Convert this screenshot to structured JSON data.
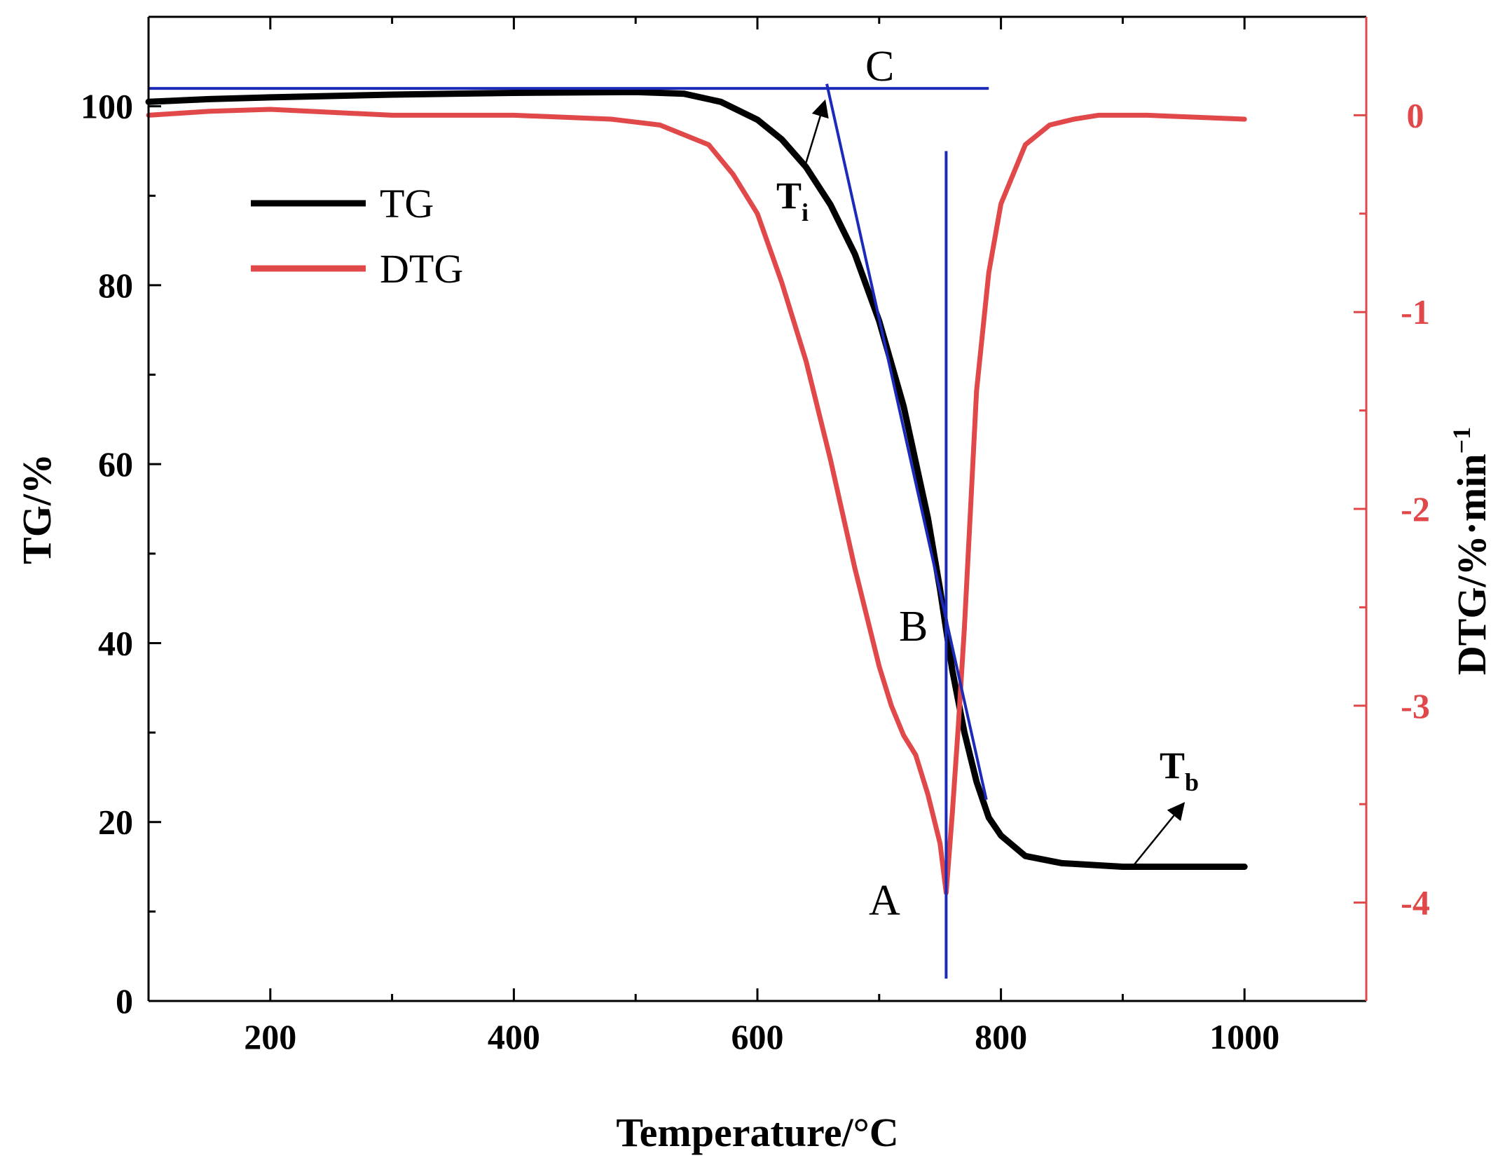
{
  "chart_data": {
    "type": "line",
    "x_axis": {
      "label": "Temperature/°C",
      "range": [
        100,
        1100
      ],
      "ticks": [
        200,
        400,
        600,
        800,
        1000
      ],
      "tick_labels": [
        "200",
        "400",
        "600",
        "800",
        "1000"
      ],
      "minor_ticks": [
        300,
        500,
        700,
        900
      ]
    },
    "y_left": {
      "label": "TG/%",
      "range": [
        0,
        110
      ],
      "ticks": [
        0,
        20,
        40,
        60,
        80,
        100
      ],
      "tick_labels": [
        "0",
        "20",
        "40",
        "60",
        "80",
        "100"
      ],
      "minor_ticks": [
        10,
        30,
        50,
        70,
        90
      ]
    },
    "y_right": {
      "label": "DTG/%·min",
      "label_superscript": "−1",
      "range": [
        -4.5,
        0.5
      ],
      "ticks": [
        0,
        -1,
        -2,
        -3,
        -4
      ],
      "tick_labels": [
        "0",
        "-1",
        "-2",
        "-3",
        "-4"
      ],
      "minor_ticks": [
        -0.5,
        -1.5,
        -2.5,
        -3.5
      ],
      "color": "#e0484a"
    },
    "series": [
      {
        "name": "TG",
        "axis": "left",
        "color": "#000000",
        "x": [
          100,
          150,
          200,
          300,
          400,
          500,
          540,
          570,
          600,
          620,
          640,
          660,
          680,
          700,
          720,
          740,
          750,
          760,
          770,
          780,
          790,
          800,
          820,
          850,
          900,
          950,
          1000
        ],
        "y": [
          100.5,
          100.8,
          101.0,
          101.3,
          101.5,
          101.6,
          101.4,
          100.5,
          98.5,
          96.3,
          93.2,
          89.0,
          83.5,
          76.0,
          66.5,
          54.0,
          46.0,
          37.0,
          30.0,
          24.5,
          20.5,
          18.5,
          16.2,
          15.4,
          15.0,
          15.0,
          15.0
        ]
      },
      {
        "name": "DTG",
        "axis": "right",
        "color": "#e0484a",
        "x": [
          100,
          150,
          200,
          300,
          400,
          480,
          520,
          560,
          580,
          600,
          620,
          640,
          660,
          680,
          700,
          710,
          720,
          730,
          740,
          750,
          755,
          760,
          765,
          770,
          775,
          780,
          790,
          800,
          820,
          840,
          860,
          880,
          900,
          920,
          1000
        ],
        "y": [
          0.0,
          0.02,
          0.03,
          0.0,
          0.0,
          -0.02,
          -0.05,
          -0.15,
          -0.3,
          -0.5,
          -0.85,
          -1.25,
          -1.75,
          -2.3,
          -2.8,
          -3.0,
          -3.15,
          -3.25,
          -3.45,
          -3.7,
          -3.95,
          -3.55,
          -3.1,
          -2.6,
          -2.0,
          -1.4,
          -0.8,
          -0.45,
          -0.15,
          -0.05,
          -0.02,
          0.0,
          0.0,
          0.0,
          -0.02
        ]
      }
    ],
    "annotations": {
      "point_A": "A",
      "point_B": "B",
      "point_C": "C",
      "T_i": {
        "main": "T",
        "sub": "i"
      },
      "T_b": {
        "main": "T",
        "sub": "b"
      },
      "tangent_color": "#1c2ab8",
      "horizontal_baseline_tg": 102.0,
      "tangent_line": {
        "x": [
          657,
          788
        ],
        "y": [
          102.5,
          22.5
        ]
      },
      "vertical_line_x": 755,
      "vertical_line_range": [
        2.5,
        95
      ],
      "point_A_x": 755,
      "point_C_x": 657,
      "T_i_arrow_target_x": 655,
      "T_b_arrow_target_x": 855
    },
    "legend": {
      "position": "top-left",
      "entries": [
        {
          "label": "TG",
          "color": "#000000"
        },
        {
          "label": "DTG",
          "color": "#e0484a"
        }
      ]
    }
  }
}
